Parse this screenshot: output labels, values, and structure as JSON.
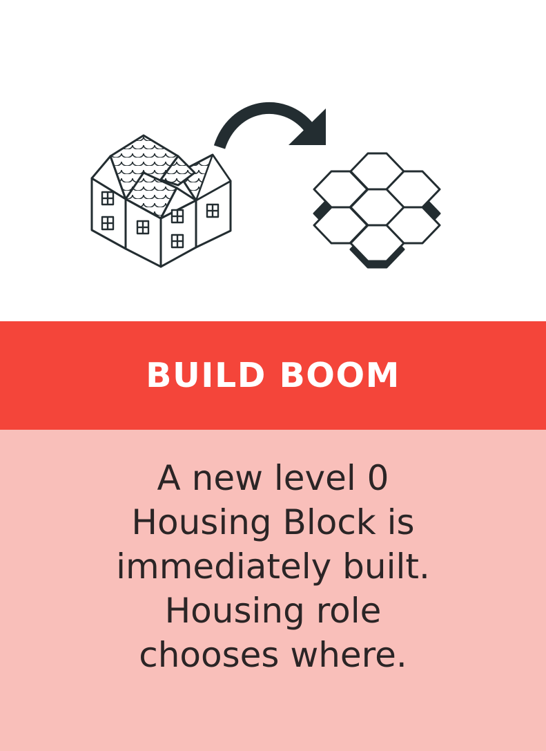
{
  "card": {
    "title": "BUILD BOOM",
    "description_lines": [
      "A new level 0",
      "Housing Block is",
      "immediately built.",
      "Housing role",
      "chooses where."
    ],
    "colors": {
      "title_band": "#f4453a",
      "body_background": "#f9bfba",
      "illustration_ink": "#232d31",
      "text": "#2b2526"
    },
    "icons": [
      "housing-block-icon",
      "curved-arrow-icon",
      "hex-tiles-icon"
    ]
  }
}
